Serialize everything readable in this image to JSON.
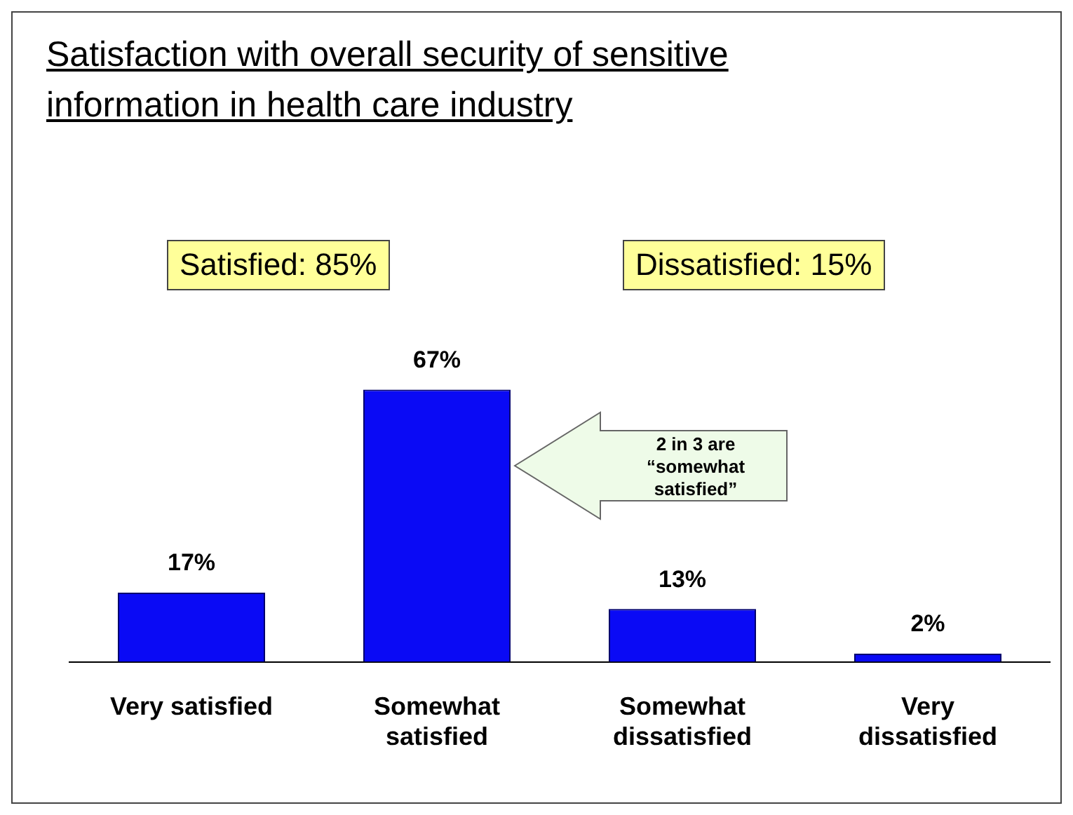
{
  "chart_data": {
    "type": "bar",
    "title": "Satisfaction with overall security of sensitive information in health care industry",
    "categories": [
      "Very satisfied",
      "Somewhat satisfied",
      "Somewhat dissatisfied",
      "Very dissatisfied"
    ],
    "values": [
      17,
      67,
      13,
      2
    ],
    "value_labels": [
      "17%",
      "67%",
      "13%",
      "2%"
    ],
    "color": "#0a0af5",
    "annotations": [
      "Satisfied: 85%",
      "Dissatisfied: 15%",
      "2 in 3 are “somewhat satisfied”"
    ]
  }
}
